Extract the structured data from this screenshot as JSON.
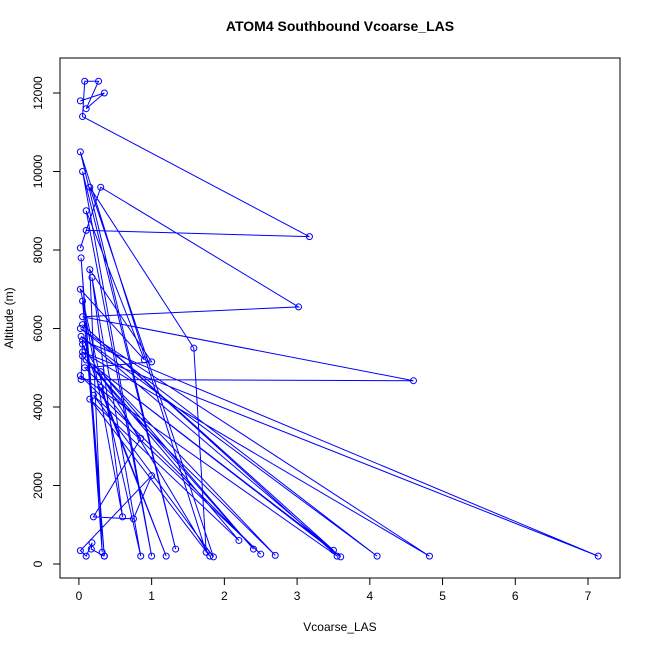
{
  "chart_data": {
    "type": "line",
    "title": "ATOM4 Southbound Vcoarse_LAS",
    "x_label": "Vcoarse_LAS",
    "y_label": "Altitude (m)",
    "xlim": [
      -0.26,
      7.44
    ],
    "ylim": [
      -357,
      12892
    ],
    "xticks": [
      0,
      1,
      2,
      3,
      4,
      5,
      6,
      7
    ],
    "yticks": [
      0,
      2000,
      4000,
      6000,
      8000,
      10000,
      12000
    ],
    "markers": true,
    "x": [
      0.02,
      0.35,
      0.1,
      0.27,
      0.08,
      0.05,
      3.17,
      0.1,
      0.02,
      0.3,
      3.02,
      0.05,
      4.6,
      0.03,
      0.05,
      7.14,
      0.05,
      4.82,
      0.02,
      4.1,
      0.03,
      3.6,
      0.1,
      3.5,
      0.05,
      3.55,
      0.02,
      2.5,
      0.2,
      1.85,
      0.15,
      1.58,
      1.75,
      0.02,
      1.33,
      0.05,
      1.0,
      0.1,
      0.9,
      0.02,
      0.85,
      0.18,
      0.6,
      0.05,
      0.35,
      0.03,
      0.32,
      0.15,
      1.0,
      0.08,
      2.7,
      0.3,
      2.4,
      0.05,
      2.2,
      0.15,
      1.8,
      0.05,
      1.2,
      0.3,
      0.85,
      0.2,
      0.75,
      1.0,
      0.02,
      0.1,
      0.18,
      0.17,
      0.35
    ],
    "series": [
      {
        "name": "Vcoarse_LAS",
        "color": "#0000ff",
        "values": [
          11800,
          12000,
          11600,
          12300,
          12300,
          11400,
          8340,
          8500,
          8050,
          9600,
          6550,
          6300,
          4670,
          4700,
          5700,
          200,
          5400,
          200,
          6000,
          200,
          5800,
          180,
          5200,
          350,
          6100,
          200,
          4800,
          250,
          4300,
          180,
          9600,
          5500,
          300,
          10500,
          380,
          10000,
          200,
          9000,
          5200,
          7000,
          200,
          7300,
          1200,
          6700,
          200,
          7800,
          300,
          7500,
          5150,
          5000,
          220,
          4900,
          380,
          5300,
          600,
          4200,
          200,
          5600,
          200,
          4500,
          3200,
          1200,
          1150,
          2250,
          340,
          200,
          540,
          380,
          200
        ]
      }
    ]
  }
}
